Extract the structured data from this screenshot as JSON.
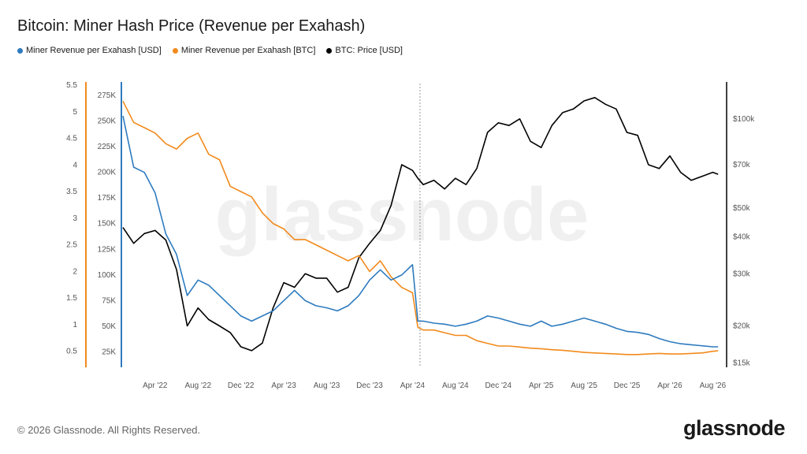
{
  "title": "Bitcoin: Miner Hash Price (Revenue per Exahash)",
  "footer": "© 2026 Glassnode. All Rights Reserved.",
  "brand": "glassnode",
  "watermark": "glassnode",
  "colors": {
    "usd": "#2e7bbf",
    "btc": "#f28a1c",
    "price": "#000000"
  },
  "chart_data": {
    "type": "line",
    "title": "Bitcoin: Miner Hash Price (Revenue per Exahash)",
    "legend_position": "top-left",
    "grid": false,
    "x_range": [
      "2022-01",
      "2026-08"
    ],
    "x_ticks": [
      "Apr '22",
      "Aug '22",
      "Dec '22",
      "Apr '23",
      "Aug '23",
      "Dec '23",
      "Apr '24",
      "Aug '24",
      "Dec '24",
      "Apr '25",
      "Aug '25",
      "Dec '25",
      "Apr '26",
      "Aug '26"
    ],
    "x_tick_months": [
      3,
      7,
      11,
      15,
      19,
      23,
      27,
      31,
      35,
      39,
      43,
      47,
      51,
      55
    ],
    "annotation_vline_month": 27.7,
    "axes": {
      "btc_left_outer": {
        "ticks": [
          "0.5",
          "1",
          "1.5",
          "2",
          "2.5",
          "3",
          "3.5",
          "4",
          "4.5",
          "5",
          "5.5"
        ],
        "values": [
          0.5,
          1,
          1.5,
          2,
          2.5,
          3,
          3.5,
          4,
          4.5,
          5,
          5.5
        ],
        "range": [
          0.2,
          5.5
        ]
      },
      "usd_left_inner": {
        "ticks": [
          "25K",
          "50K",
          "75K",
          "100K",
          "125K",
          "150K",
          "175K",
          "200K",
          "225K",
          "250K",
          "275K"
        ],
        "values": [
          25000,
          50000,
          75000,
          100000,
          125000,
          150000,
          175000,
          200000,
          225000,
          250000,
          275000
        ],
        "range": [
          10000,
          285000
        ]
      },
      "price_right_log": {
        "ticks": [
          "$15k",
          "$20k",
          "$30k",
          "$40k",
          "$50k",
          "$70k",
          "$100k"
        ],
        "values": [
          15000,
          20000,
          30000,
          40000,
          50000,
          70000,
          100000
        ],
        "range": [
          14500,
          130000
        ]
      }
    },
    "x_months": [
      0,
      1,
      2,
      3,
      4,
      5,
      6,
      7,
      8,
      9,
      10,
      11,
      12,
      13,
      14,
      15,
      16,
      17,
      18,
      19,
      20,
      21,
      22,
      23,
      24,
      25,
      26,
      27,
      27.5,
      28,
      29,
      30,
      31,
      32,
      33,
      34,
      35,
      36,
      37,
      38,
      39,
      40,
      41,
      42,
      43,
      44,
      45,
      46,
      47,
      48,
      49,
      50,
      51,
      52,
      53,
      54,
      55,
      55.5
    ],
    "series": [
      {
        "name": "Miner Revenue per Exahash [USD]",
        "axis": "usd_left_inner",
        "color": "#2e7bbf",
        "values": [
          255000,
          205000,
          200000,
          180000,
          140000,
          120000,
          80000,
          95000,
          90000,
          80000,
          70000,
          60000,
          55000,
          60000,
          65000,
          75000,
          85000,
          75000,
          70000,
          68000,
          65000,
          70000,
          80000,
          95000,
          105000,
          95000,
          100000,
          110000,
          55000,
          55000,
          53000,
          52000,
          50000,
          52000,
          55000,
          60000,
          58000,
          55000,
          52000,
          50000,
          55000,
          50000,
          52000,
          55000,
          58000,
          55000,
          52000,
          48000,
          45000,
          44000,
          42000,
          38000,
          35000,
          33000,
          32000,
          31000,
          30000,
          30000
        ]
      },
      {
        "name": "Miner Revenue per Exahash [BTC]",
        "axis": "btc_left_outer",
        "color": "#f28a1c",
        "values": [
          5.2,
          4.8,
          4.7,
          4.6,
          4.4,
          4.3,
          4.5,
          4.6,
          4.2,
          4.1,
          3.6,
          3.5,
          3.4,
          3.1,
          2.9,
          2.8,
          2.6,
          2.6,
          2.5,
          2.4,
          2.3,
          2.2,
          2.3,
          2.0,
          2.2,
          1.9,
          1.7,
          1.6,
          0.95,
          0.9,
          0.9,
          0.85,
          0.8,
          0.8,
          0.7,
          0.65,
          0.6,
          0.6,
          0.58,
          0.56,
          0.55,
          0.53,
          0.52,
          0.5,
          0.48,
          0.47,
          0.46,
          0.45,
          0.44,
          0.44,
          0.45,
          0.46,
          0.45,
          0.45,
          0.46,
          0.47,
          0.5,
          0.51
        ]
      },
      {
        "name": "BTC: Price [USD]",
        "axis": "price_right_log",
        "color": "#000000",
        "values": [
          43000,
          38000,
          41000,
          42000,
          39000,
          31000,
          20000,
          23000,
          21000,
          20000,
          19000,
          17000,
          16500,
          17500,
          23000,
          28000,
          27000,
          30000,
          29000,
          29000,
          26000,
          27000,
          34000,
          38000,
          42000,
          51000,
          70000,
          67000,
          63000,
          60000,
          62000,
          58000,
          63000,
          60000,
          68000,
          90000,
          97000,
          95000,
          100000,
          84000,
          80000,
          95000,
          105000,
          108000,
          115000,
          118000,
          112000,
          108000,
          90000,
          88000,
          70000,
          68000,
          75000,
          66000,
          62000,
          64000,
          66000,
          65000
        ]
      }
    ]
  }
}
